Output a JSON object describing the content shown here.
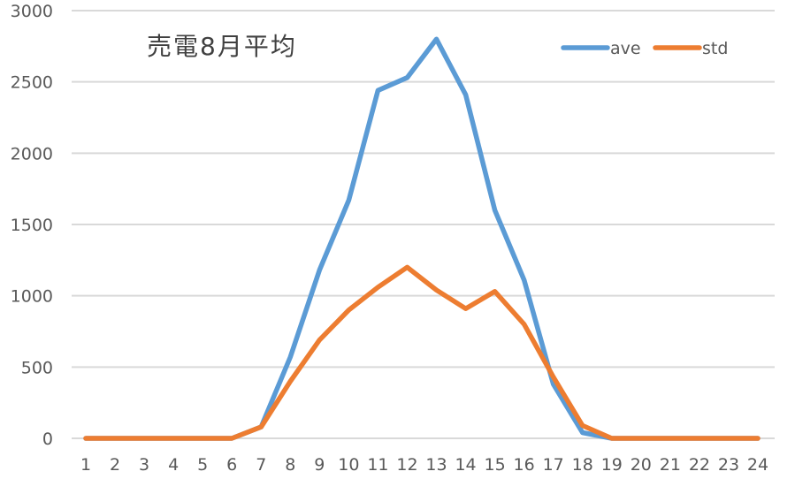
{
  "chart_data": {
    "type": "line",
    "title": "売電8月平均",
    "xlabel": "",
    "ylabel": "",
    "x": [
      1,
      2,
      3,
      4,
      5,
      6,
      7,
      8,
      9,
      10,
      11,
      12,
      13,
      14,
      15,
      16,
      17,
      18,
      19,
      20,
      21,
      22,
      23,
      24
    ],
    "series": [
      {
        "name": "ave",
        "color": "#5b9bd5",
        "values": [
          0,
          0,
          0,
          0,
          0,
          0,
          80,
          570,
          1180,
          1670,
          2440,
          2530,
          2800,
          2410,
          1600,
          1110,
          380,
          40,
          0,
          0,
          0,
          0,
          0,
          0
        ]
      },
      {
        "name": "std",
        "color": "#ed7d31",
        "values": [
          0,
          0,
          0,
          0,
          0,
          0,
          80,
          400,
          690,
          900,
          1060,
          1200,
          1040,
          910,
          1030,
          800,
          430,
          90,
          0,
          0,
          0,
          0,
          0,
          0
        ]
      }
    ],
    "ylim": [
      0,
      3000
    ],
    "yticks": [
      0,
      500,
      1000,
      1500,
      2000,
      2500,
      3000
    ],
    "grid": true,
    "legend_position": "top-right"
  }
}
